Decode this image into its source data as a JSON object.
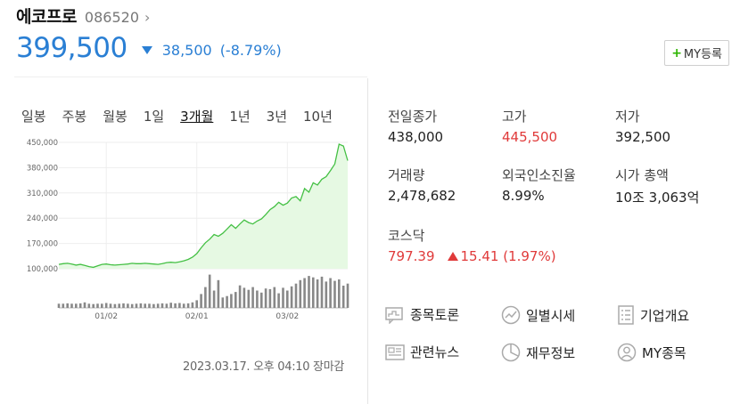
{
  "header": {
    "company": "에코프로",
    "code": "086520",
    "price": "399,500",
    "change": "38,500",
    "change_pct": "(-8.79%)",
    "my_button": "MY등록"
  },
  "tabs": [
    "일봉",
    "주봉",
    "월봉",
    "1일",
    "3개월",
    "1년",
    "3년",
    "10년"
  ],
  "active_tab": "3개월",
  "timestamp": "2023.03.17. 오후 04:10 장마감",
  "stats": {
    "prev_close_label": "전일종가",
    "prev_close": "438,000",
    "high_label": "고가",
    "high": "445,500",
    "low_label": "저가",
    "low": "392,500",
    "volume_label": "거래량",
    "volume": "2,478,682",
    "foreign_label": "외국인소진율",
    "foreign": "8.99%",
    "mcap_label": "시가 총액",
    "mcap": "10조 3,063억",
    "kosdaq_label": "코스닥",
    "kosdaq": "797.39",
    "kosdaq_change": "15.41 (1.97%)"
  },
  "links": [
    {
      "label": "종목토론",
      "icon": "chat-chart-icon"
    },
    {
      "label": "일별시세",
      "icon": "trend-circle-icon"
    },
    {
      "label": "기업개요",
      "icon": "list-doc-icon"
    },
    {
      "label": "관련뉴스",
      "icon": "news-icon"
    },
    {
      "label": "재무정보",
      "icon": "pie-icon"
    },
    {
      "label": "MY종목",
      "icon": "person-icon"
    }
  ],
  "colors": {
    "accent_blue": "#2a7fd4",
    "up_red": "#e03a3a",
    "line_green": "#44c044",
    "fill_green": "#e6f9e3"
  },
  "chart_data": {
    "type": "line",
    "yticks": [
      "450,000",
      "380,000",
      "310,000",
      "240,000",
      "170,000",
      "100,000"
    ],
    "ylim": [
      100000,
      450000
    ],
    "xticks": [
      "01/02",
      "02/01",
      "03/02"
    ],
    "values": [
      112000,
      114000,
      115000,
      113000,
      110000,
      112000,
      109000,
      106000,
      104000,
      108000,
      112000,
      113000,
      111000,
      110000,
      111000,
      112000,
      113000,
      115000,
      114000,
      114000,
      115000,
      114000,
      113000,
      112000,
      114000,
      117000,
      118000,
      117000,
      119000,
      122000,
      126000,
      132000,
      142000,
      158000,
      172000,
      182000,
      195000,
      190000,
      198000,
      210000,
      222000,
      212000,
      224000,
      235000,
      228000,
      224000,
      232000,
      238000,
      250000,
      264000,
      272000,
      284000,
      276000,
      282000,
      296000,
      300000,
      288000,
      322000,
      312000,
      338000,
      332000,
      348000,
      355000,
      372000,
      390000,
      445000,
      440000,
      399500
    ],
    "volume": [
      12,
      12,
      13,
      12,
      12,
      13,
      16,
      12,
      11,
      12,
      12,
      14,
      12,
      11,
      12,
      13,
      12,
      11,
      12,
      13,
      12,
      12,
      11,
      12,
      13,
      12,
      15,
      13,
      14,
      12,
      13,
      16,
      22,
      40,
      60,
      96,
      50,
      80,
      30,
      34,
      40,
      46,
      65,
      58,
      52,
      60,
      50,
      44,
      56,
      54,
      60,
      42,
      58,
      50,
      62,
      70,
      80,
      86,
      92,
      88,
      82,
      90,
      76,
      86,
      78,
      82,
      64,
      70
    ],
    "volume_max": 100
  }
}
